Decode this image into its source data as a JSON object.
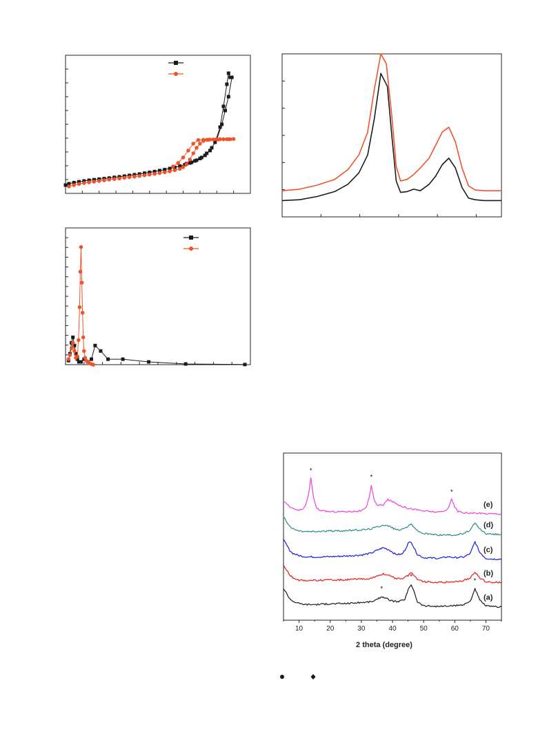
{
  "colors": {
    "black": "#1a1a1a",
    "orange": "#f0522a",
    "magenta": "#f040e0",
    "teal": "#2a8c86",
    "blue": "#1a1adf",
    "red": "#e81a1a"
  },
  "chart_data": [
    {
      "id": "isotherm",
      "type": "line",
      "title": "",
      "xlabel": "",
      "ylabel": "",
      "xlim": [
        0,
        1.1
      ],
      "ylim": [
        0,
        10
      ],
      "legend": "top-center",
      "series": [
        {
          "color": "#1a1a1a",
          "marker": "square",
          "x": [
            0.0,
            0.02,
            0.05,
            0.08,
            0.11,
            0.14,
            0.17,
            0.2,
            0.23,
            0.26,
            0.29,
            0.32,
            0.35,
            0.38,
            0.41,
            0.44,
            0.47,
            0.5,
            0.53,
            0.56,
            0.59,
            0.62,
            0.65,
            0.68,
            0.71,
            0.74,
            0.77,
            0.8,
            0.83,
            0.86,
            0.89,
            0.92,
            0.94,
            0.96,
            0.97,
            0.98,
            0.99,
            0.97,
            0.95,
            0.93,
            0.9,
            0.87,
            0.84,
            0.81,
            0.78,
            0.75,
            0.72
          ],
          "y": [
            0.6,
            0.7,
            0.78,
            0.84,
            0.9,
            0.95,
            0.99,
            1.03,
            1.07,
            1.11,
            1.16,
            1.2,
            1.25,
            1.3,
            1.35,
            1.4,
            1.46,
            1.52,
            1.58,
            1.65,
            1.72,
            1.8,
            1.88,
            1.98,
            2.08,
            2.2,
            2.35,
            2.52,
            2.75,
            3.1,
            3.7,
            4.8,
            6.3,
            7.9,
            8.7,
            8.4,
            8.4,
            7.0,
            6.0,
            5.0,
            3.9,
            3.3,
            2.9,
            2.6,
            2.4,
            2.25,
            2.15
          ]
        },
        {
          "color": "#f0522a",
          "marker": "circle",
          "x": [
            0.02,
            0.05,
            0.08,
            0.11,
            0.14,
            0.17,
            0.2,
            0.23,
            0.26,
            0.29,
            0.32,
            0.35,
            0.38,
            0.41,
            0.44,
            0.47,
            0.5,
            0.53,
            0.56,
            0.59,
            0.62,
            0.65,
            0.68,
            0.7,
            0.72,
            0.74,
            0.76,
            0.78,
            0.8,
            0.82,
            0.84,
            0.86,
            0.88,
            0.9,
            0.92,
            0.94,
            0.96,
            0.98,
            1.0,
            0.97,
            0.94,
            0.91,
            0.88,
            0.85,
            0.82,
            0.79,
            0.76,
            0.73,
            0.7,
            0.67,
            0.64
          ],
          "y": [
            0.5,
            0.6,
            0.68,
            0.75,
            0.8,
            0.85,
            0.9,
            0.95,
            1.0,
            1.04,
            1.08,
            1.13,
            1.17,
            1.21,
            1.26,
            1.31,
            1.36,
            1.41,
            1.47,
            1.53,
            1.6,
            1.68,
            1.78,
            1.9,
            2.1,
            2.45,
            2.9,
            3.3,
            3.6,
            3.8,
            3.88,
            3.9,
            3.9,
            3.9,
            3.92,
            3.92,
            3.92,
            3.92,
            3.94,
            3.92,
            3.92,
            3.9,
            3.9,
            3.88,
            3.88,
            3.86,
            3.6,
            3.1,
            2.6,
            2.2,
            1.95
          ]
        }
      ]
    },
    {
      "id": "pore-size",
      "type": "line",
      "title": "",
      "xlabel": "",
      "ylabel": "",
      "xlim": [
        0,
        50
      ],
      "ylim": [
        0,
        1.0
      ],
      "legend": "top-right",
      "series": [
        {
          "color": "#1a1a1a",
          "marker": "square",
          "x": [
            0.8,
            1.2,
            1.6,
            2.0,
            2.4,
            2.8,
            3.2,
            3.6,
            4.2,
            5.0,
            6.0,
            7.0,
            8.0,
            9.5,
            11.5,
            15.5,
            22.5,
            32.5,
            48.5
          ],
          "y": [
            0.03,
            0.08,
            0.16,
            0.2,
            0.14,
            0.08,
            0.04,
            0.02,
            0.02,
            0.04,
            0.02,
            0.04,
            0.14,
            0.1,
            0.04,
            0.04,
            0.02,
            0.005,
            0.001
          ]
        },
        {
          "color": "#f0522a",
          "marker": "circle",
          "x": [
            0.8,
            1.2,
            1.6,
            2.0,
            2.4,
            2.8,
            3.2,
            3.5,
            3.8,
            4.0,
            4.2,
            4.4,
            4.6,
            4.8,
            5.0,
            5.3,
            5.6,
            6.0,
            6.5,
            7.0,
            7.5
          ],
          "y": [
            0.04,
            0.07,
            0.12,
            0.16,
            0.1,
            0.05,
            0.06,
            0.18,
            0.42,
            0.68,
            0.86,
            0.6,
            0.38,
            0.2,
            0.1,
            0.05,
            0.03,
            0.02,
            0.01,
            0.005,
            0.0
          ]
        }
      ]
    },
    {
      "id": "spectrum",
      "type": "line",
      "title": "",
      "xlabel": "",
      "ylabel": "",
      "xlim": [
        0,
        10
      ],
      "ylim": [
        0,
        10
      ],
      "series": [
        {
          "color": "#1a1a1a",
          "x": [
            0.0,
            0.8,
            1.6,
            2.4,
            3.0,
            3.5,
            3.9,
            4.2,
            4.5,
            4.8,
            5.0,
            5.2,
            5.4,
            5.7,
            6.0,
            6.3,
            6.7,
            7.0,
            7.3,
            7.6,
            7.9,
            8.2,
            8.5,
            8.8,
            9.2,
            9.6,
            10.0
          ],
          "y": [
            1.0,
            1.05,
            1.25,
            1.55,
            2.0,
            2.7,
            3.8,
            6.0,
            8.8,
            8.0,
            5.0,
            2.2,
            1.5,
            1.55,
            1.7,
            1.6,
            2.0,
            2.5,
            3.2,
            3.6,
            3.0,
            1.8,
            1.15,
            1.05,
            1.0,
            1.0,
            1.0
          ]
        },
        {
          "color": "#f0522a",
          "x": [
            0.0,
            0.8,
            1.6,
            2.4,
            3.0,
            3.5,
            3.9,
            4.2,
            4.5,
            4.75,
            5.0,
            5.2,
            5.4,
            5.7,
            6.0,
            6.3,
            6.7,
            7.0,
            7.3,
            7.6,
            7.9,
            8.2,
            8.5,
            8.8,
            9.2,
            9.6,
            10.0
          ],
          "y": [
            1.6,
            1.7,
            1.95,
            2.3,
            2.9,
            3.8,
            5.2,
            7.8,
            10.0,
            9.4,
            6.2,
            3.1,
            2.2,
            2.3,
            2.6,
            3.0,
            3.6,
            4.4,
            5.2,
            5.5,
            4.6,
            3.0,
            1.9,
            1.65,
            1.6,
            1.6,
            1.6
          ]
        }
      ]
    },
    {
      "id": "xrd",
      "type": "line",
      "title": "",
      "xlabel": "2 theta (degree)",
      "ylabel": "",
      "xlim": [
        5,
        75
      ],
      "xticks": [
        10,
        20,
        30,
        40,
        50,
        60,
        70
      ],
      "ylim": [
        0,
        5
      ],
      "peak_marker": "*",
      "series": [
        {
          "label": "(a)",
          "color": "#1a1a1a",
          "offset": 0.0,
          "peak_stars": [
            36.5,
            46,
            66.5
          ],
          "x": [
            5,
            6,
            7,
            8,
            10,
            12,
            15,
            20,
            25,
            30,
            33,
            35,
            36.5,
            38,
            40,
            42,
            44,
            45,
            46,
            47,
            48,
            50,
            55,
            60,
            63,
            65,
            66.5,
            68,
            70,
            72,
            75
          ],
          "y": [
            0.6,
            0.45,
            0.3,
            0.22,
            0.15,
            0.12,
            0.12,
            0.14,
            0.15,
            0.18,
            0.2,
            0.26,
            0.36,
            0.3,
            0.22,
            0.2,
            0.28,
            0.55,
            0.72,
            0.5,
            0.2,
            0.08,
            0.06,
            0.08,
            0.12,
            0.22,
            0.6,
            0.25,
            0.08,
            0.05,
            0.05
          ]
        },
        {
          "label": "(b)",
          "color": "#e81a1a",
          "offset": 0.7,
          "x": [
            5,
            6,
            7,
            8,
            10,
            12,
            15,
            20,
            25,
            30,
            33,
            35,
            37,
            39,
            41,
            43,
            45,
            46,
            47,
            48,
            50,
            55,
            60,
            63,
            65,
            66.5,
            68,
            70,
            72,
            75
          ],
          "y": [
            0.6,
            0.45,
            0.3,
            0.22,
            0.15,
            0.14,
            0.14,
            0.15,
            0.16,
            0.18,
            0.2,
            0.26,
            0.34,
            0.28,
            0.2,
            0.2,
            0.28,
            0.38,
            0.28,
            0.18,
            0.1,
            0.08,
            0.1,
            0.14,
            0.22,
            0.38,
            0.22,
            0.1,
            0.08,
            0.08
          ]
        },
        {
          "label": "(c)",
          "color": "#1a1adf",
          "offset": 1.4,
          "x": [
            5,
            6,
            7,
            8,
            10,
            12,
            15,
            20,
            25,
            30,
            33,
            35,
            37,
            39,
            41,
            43,
            44,
            45,
            46,
            47,
            48,
            50,
            55,
            58,
            60,
            63,
            65,
            66.5,
            68,
            70,
            72,
            75
          ],
          "y": [
            0.65,
            0.5,
            0.34,
            0.25,
            0.18,
            0.15,
            0.14,
            0.15,
            0.17,
            0.2,
            0.25,
            0.34,
            0.42,
            0.35,
            0.22,
            0.22,
            0.35,
            0.55,
            0.6,
            0.4,
            0.22,
            0.12,
            0.1,
            0.15,
            0.12,
            0.14,
            0.25,
            0.6,
            0.28,
            0.1,
            0.08,
            0.08
          ]
        },
        {
          "label": "(d)",
          "color": "#2a8c86",
          "offset": 2.1,
          "x": [
            5,
            6,
            7,
            8,
            10,
            12,
            15,
            20,
            25,
            30,
            33,
            35,
            37,
            39,
            41,
            43,
            45,
            46,
            47,
            48,
            50,
            55,
            60,
            63,
            65,
            66.5,
            68,
            70,
            72,
            75
          ],
          "y": [
            0.65,
            0.5,
            0.36,
            0.28,
            0.22,
            0.2,
            0.2,
            0.22,
            0.23,
            0.25,
            0.28,
            0.34,
            0.4,
            0.36,
            0.26,
            0.26,
            0.36,
            0.42,
            0.34,
            0.22,
            0.14,
            0.1,
            0.1,
            0.14,
            0.25,
            0.45,
            0.28,
            0.14,
            0.12,
            0.12
          ]
        },
        {
          "label": "(e)",
          "color": "#f040e0",
          "offset": 2.8,
          "peak_stars": [
            13.8,
            33.2,
            59
          ],
          "x": [
            5,
            6,
            7,
            8,
            10,
            11,
            12,
            13,
            13.8,
            14.6,
            15.5,
            17,
            20,
            25,
            30,
            31.5,
            32.5,
            33.2,
            34,
            35,
            37,
            38.5,
            40,
            42,
            45,
            50,
            55,
            57,
            58,
            59,
            60,
            61,
            63,
            65,
            70,
            75
          ],
          "y": [
            0.4,
            0.32,
            0.24,
            0.18,
            0.14,
            0.16,
            0.25,
            0.6,
            1.1,
            0.55,
            0.22,
            0.12,
            0.1,
            0.1,
            0.12,
            0.2,
            0.5,
            0.9,
            0.5,
            0.28,
            0.3,
            0.46,
            0.4,
            0.3,
            0.2,
            0.12,
            0.08,
            0.12,
            0.24,
            0.46,
            0.24,
            0.1,
            0.06,
            0.05,
            0.04,
            0.03
          ]
        }
      ]
    }
  ]
}
